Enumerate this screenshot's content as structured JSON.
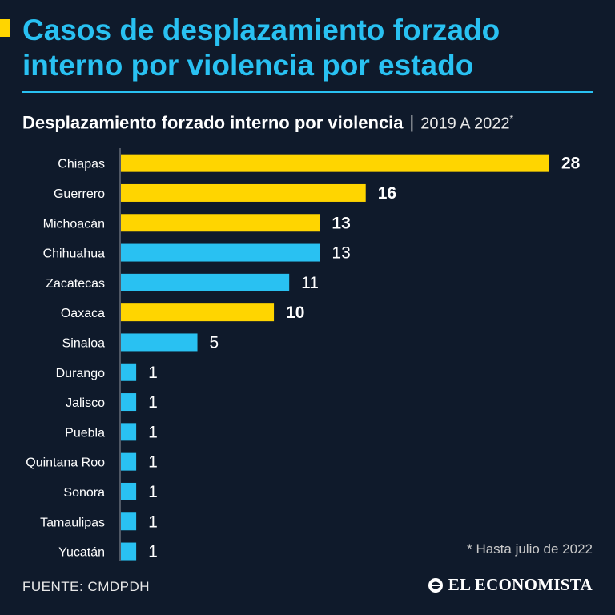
{
  "header": {
    "title": "Casos de desplazamiento forzado interno por violencia por estado",
    "subtitle_main": "Desplazamiento forzado interno por violencia",
    "subtitle_sep": "|",
    "subtitle_range": "2019 A 2022",
    "subtitle_star": "*"
  },
  "colors": {
    "background": "#0f1a2b",
    "highlight": "#ffd500",
    "normal": "#29c1f2",
    "title": "#29c1f2"
  },
  "chart_data": {
    "type": "bar",
    "orientation": "horizontal",
    "categories": [
      "Chiapas",
      "Guerrero",
      "Michoacán",
      "Chihuahua",
      "Zacatecas",
      "Oaxaca",
      "Sinaloa",
      "Durango",
      "Jalisco",
      "Puebla",
      "Quintana Roo",
      "Sonora",
      "Tamaulipas",
      "Yucatán"
    ],
    "values": [
      28,
      16,
      13,
      13,
      11,
      10,
      5,
      1,
      1,
      1,
      1,
      1,
      1,
      1
    ],
    "highlighted": [
      true,
      true,
      true,
      false,
      false,
      true,
      false,
      false,
      false,
      false,
      false,
      false,
      false,
      false
    ],
    "title": "Desplazamiento forzado interno por violencia",
    "xlabel": "",
    "ylabel": "",
    "xlim": [
      0,
      28
    ],
    "grid": false,
    "legend": "none"
  },
  "footnote": "* Hasta julio de 2022",
  "source": "FUENTE: CMDPDH",
  "brand": {
    "name": "EL ECONOMISTA",
    "icon": "el-economista-logo-icon"
  }
}
